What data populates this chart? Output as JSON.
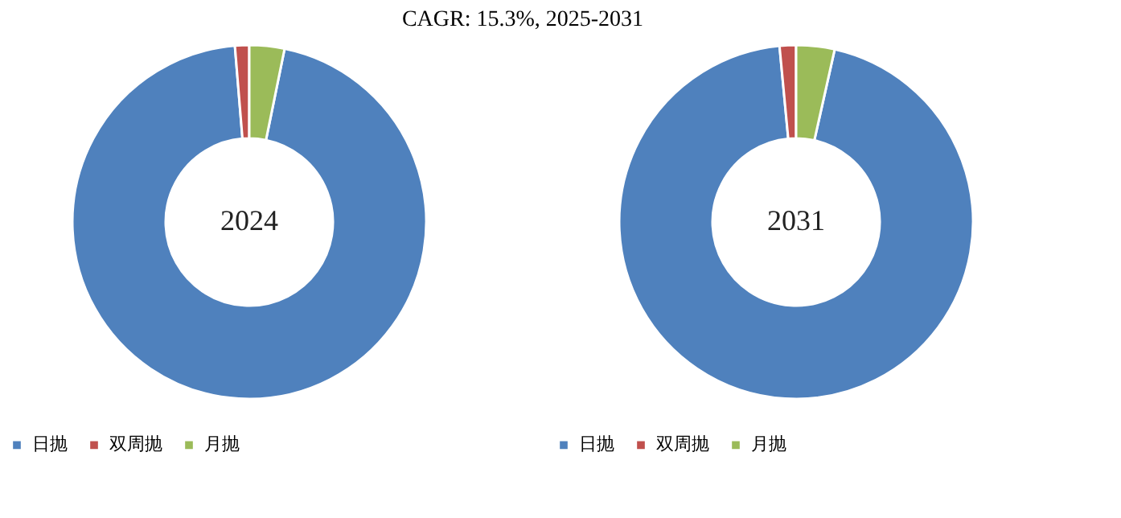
{
  "chart_data": [
    {
      "type": "donut",
      "title": "2024",
      "annotations": [
        "CAGR:  15.3%, 2025-2031"
      ],
      "categories": [
        "日抛",
        "双周抛",
        "月抛"
      ],
      "values": [
        95.5,
        1.3,
        3.2
      ],
      "colors": [
        "#4f81bd",
        "#c0504d",
        "#9bbb59"
      ],
      "legend": "bottom"
    },
    {
      "type": "donut",
      "title": "2031",
      "categories": [
        "日抛",
        "双周抛",
        "月抛"
      ],
      "values": [
        95.0,
        1.5,
        3.5
      ],
      "colors": [
        "#4f81bd",
        "#c0504d",
        "#9bbb59"
      ],
      "legend": "bottom"
    }
  ]
}
